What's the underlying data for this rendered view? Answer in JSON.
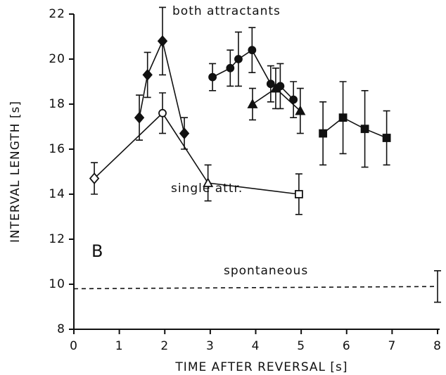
{
  "chart_data": {
    "type": "scatter",
    "xlabel": "TIME AFTER REVERSAL [s]",
    "ylabel": "INTERVAL LENGTH [s]",
    "xlim": [
      0,
      8
    ],
    "ylim": [
      8,
      22
    ],
    "xticks": [
      0,
      1,
      2,
      3,
      4,
      5,
      6,
      7,
      8
    ],
    "yticks": [
      8,
      10,
      12,
      14,
      16,
      18,
      20,
      22
    ],
    "annotations": [
      "both attractants",
      "single attr.",
      "spontaneous",
      "B"
    ],
    "series": [
      {
        "color": "#111",
        "marker": "diamond",
        "filled": true,
        "dashed": false,
        "x": [
          1.44,
          1.62,
          1.95,
          2.43
        ],
        "values": [
          17.4,
          19.3,
          20.8,
          16.7
        ],
        "errors": [
          1.0,
          1.0,
          1.5,
          0.7
        ]
      },
      {
        "color": "#111",
        "marker": "circle",
        "filled": true,
        "dashed": false,
        "x": [
          3.05,
          3.44,
          3.62,
          3.92,
          4.33,
          4.54,
          4.83
        ],
        "values": [
          19.2,
          19.6,
          20.0,
          20.4,
          18.9,
          18.8,
          18.2
        ],
        "errors": [
          0.6,
          0.8,
          1.2,
          1.0,
          0.8,
          1.0,
          0.8
        ]
      },
      {
        "color": "#111",
        "marker": "triangle",
        "filled": true,
        "dashed": false,
        "x": [
          3.93,
          4.44,
          4.98
        ],
        "values": [
          18.0,
          18.7,
          17.7
        ],
        "errors": [
          0.7,
          0.9,
          1.0
        ]
      },
      {
        "color": "#111",
        "marker": "square",
        "filled": true,
        "dashed": false,
        "x": [
          5.48,
          5.92,
          6.4,
          6.88
        ],
        "values": [
          16.7,
          17.4,
          16.9,
          16.5
        ],
        "errors": [
          1.4,
          1.6,
          1.7,
          1.2
        ]
      },
      {
        "color": "#111",
        "markers": [
          "diamond",
          "circle",
          "triangle",
          "square"
        ],
        "filled": false,
        "dashed": false,
        "x": [
          0.45,
          1.95,
          2.95,
          4.95
        ],
        "values": [
          14.7,
          17.6,
          14.5,
          14.0
        ],
        "errors": [
          0.7,
          0.9,
          0.8,
          0.9
        ]
      },
      {
        "color": "#111",
        "marker": "none",
        "filled": false,
        "dashed": true,
        "x": [
          0,
          8
        ],
        "values": [
          9.8,
          9.9
        ],
        "errors": [
          null,
          0.7
        ]
      }
    ]
  }
}
